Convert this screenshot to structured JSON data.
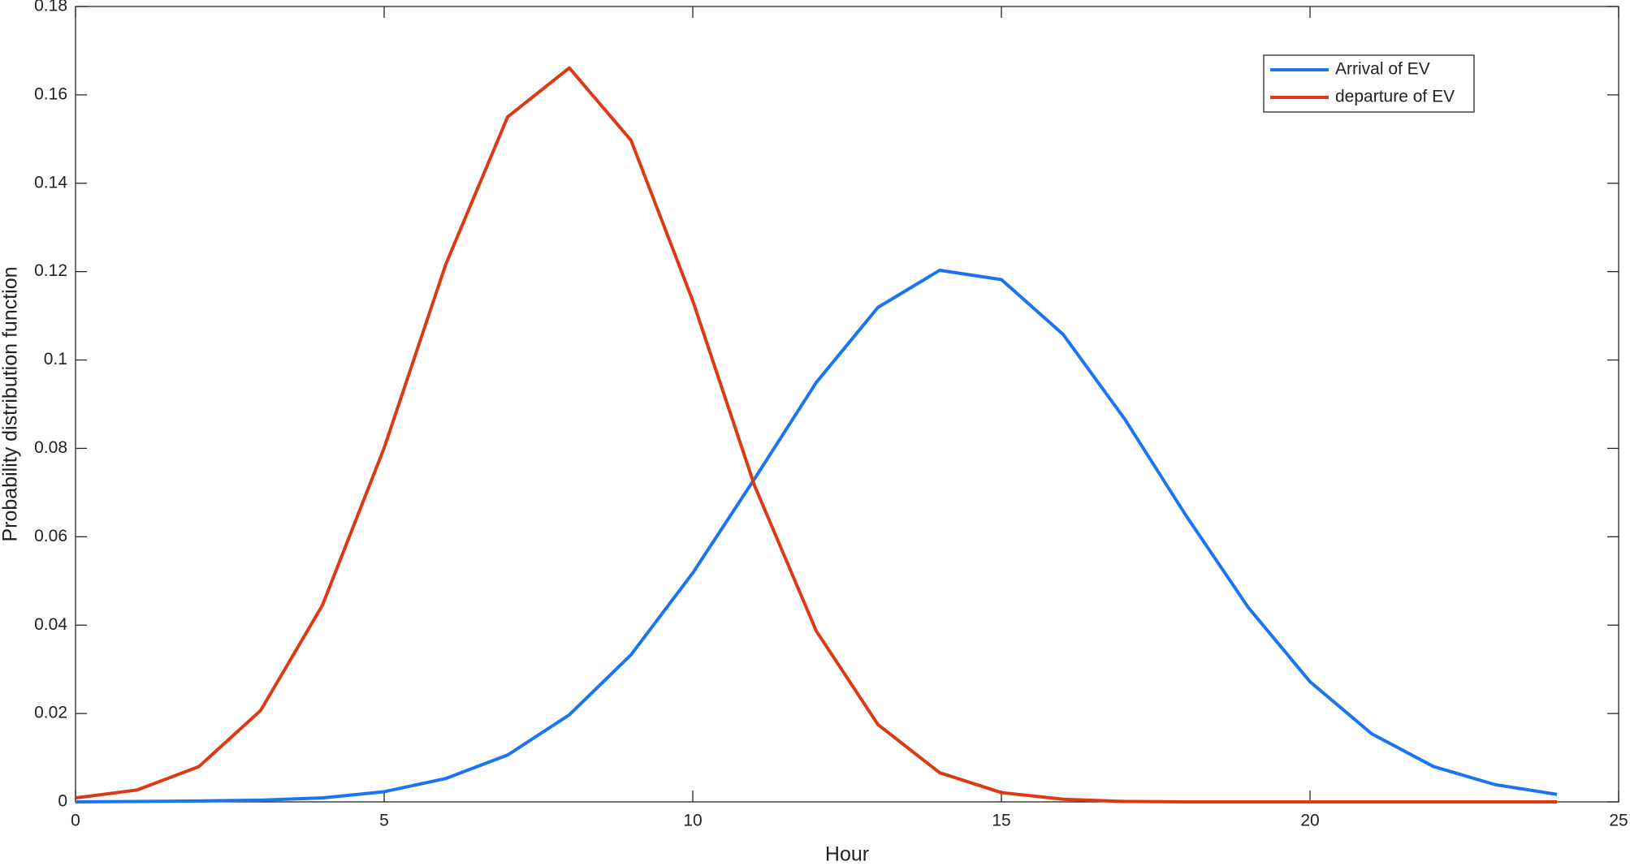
{
  "chart_data": {
    "type": "line",
    "xlabel": "Hour",
    "ylabel": "Probability distribution function",
    "x": [
      0,
      1,
      2,
      3,
      4,
      5,
      6,
      7,
      8,
      9,
      10,
      11,
      12,
      13,
      14,
      15,
      16,
      17,
      18,
      19,
      20,
      21,
      22,
      23,
      24
    ],
    "series": [
      {
        "name": "Arrival of EV",
        "color": "#1a75f0",
        "values": [
          0,
          0.0001,
          0.0002,
          0.0004,
          0.0009,
          0.0023,
          0.0053,
          0.0106,
          0.0197,
          0.0333,
          0.0518,
          0.0731,
          0.0949,
          0.1119,
          0.1203,
          0.1182,
          0.1058,
          0.0866,
          0.0646,
          0.044,
          0.0272,
          0.0154,
          0.008,
          0.0039,
          0.0017
        ]
      },
      {
        "name": "departure of EV",
        "color": "#dc3a14",
        "values": [
          0.0009,
          0.0027,
          0.008,
          0.0207,
          0.0445,
          0.0801,
          0.1217,
          0.155,
          0.1661,
          0.1497,
          0.1134,
          0.0716,
          0.0387,
          0.0175,
          0.0066,
          0.0021,
          0.0006,
          0.0001,
          0,
          0,
          0,
          0,
          0,
          0,
          0
        ]
      }
    ],
    "xlim": [
      0,
      25
    ],
    "xticks": [
      0,
      5,
      10,
      15,
      20,
      25
    ],
    "ylim": [
      0,
      0.18
    ],
    "yticks": [
      0,
      0.02,
      0.04,
      0.06,
      0.08,
      0.1,
      0.12,
      0.14,
      0.16,
      0.18
    ],
    "grid": false,
    "legend_position": "upper right"
  }
}
